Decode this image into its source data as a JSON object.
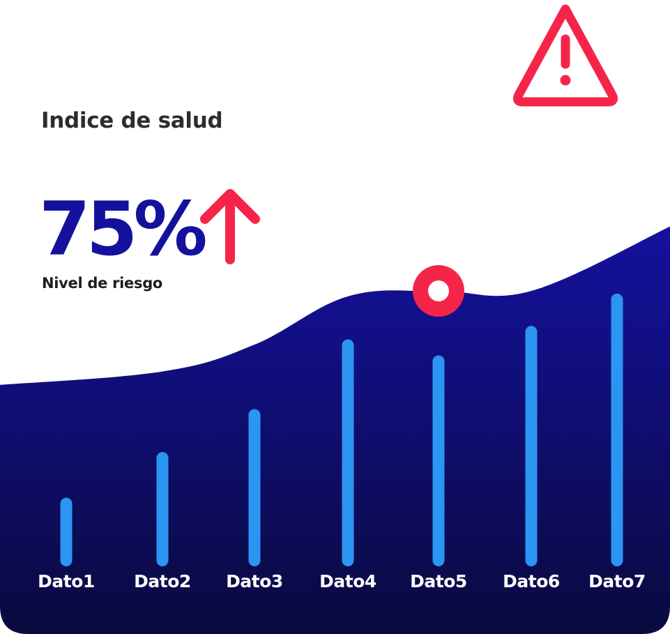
{
  "header": {
    "title": "Indice de salud"
  },
  "kpi": {
    "value": "75%",
    "label": "Nivel de riesgo",
    "trend": "up"
  },
  "icons": {
    "warning": "warning-triangle-icon",
    "trend": "arrow-up-icon",
    "marker": "ring-marker-icon"
  },
  "colors": {
    "area_top": "#14119e",
    "area_bottom": "#0a0a3f",
    "bars": "#2b95f2",
    "accent": "#f5254a",
    "kpi_value": "#14129c",
    "title": "#2d2d2d"
  },
  "chart_data": {
    "type": "bar",
    "categories": [
      "Dato1",
      "Dato2",
      "Dato3",
      "Dato4",
      "Dato5",
      "Dato6",
      "Dato7"
    ],
    "values": [
      24,
      41,
      57,
      83,
      77,
      88,
      100
    ],
    "ylim": [
      0,
      100
    ],
    "grid": false,
    "highlight_category": "Dato5",
    "background_area": {
      "type": "area",
      "x": [
        "Dato1",
        "Dato2",
        "Dato3",
        "Dato4",
        "Dato5",
        "Dato6",
        "Dato7"
      ],
      "values": [
        66,
        71,
        81,
        99,
        101,
        101,
        125
      ]
    }
  }
}
